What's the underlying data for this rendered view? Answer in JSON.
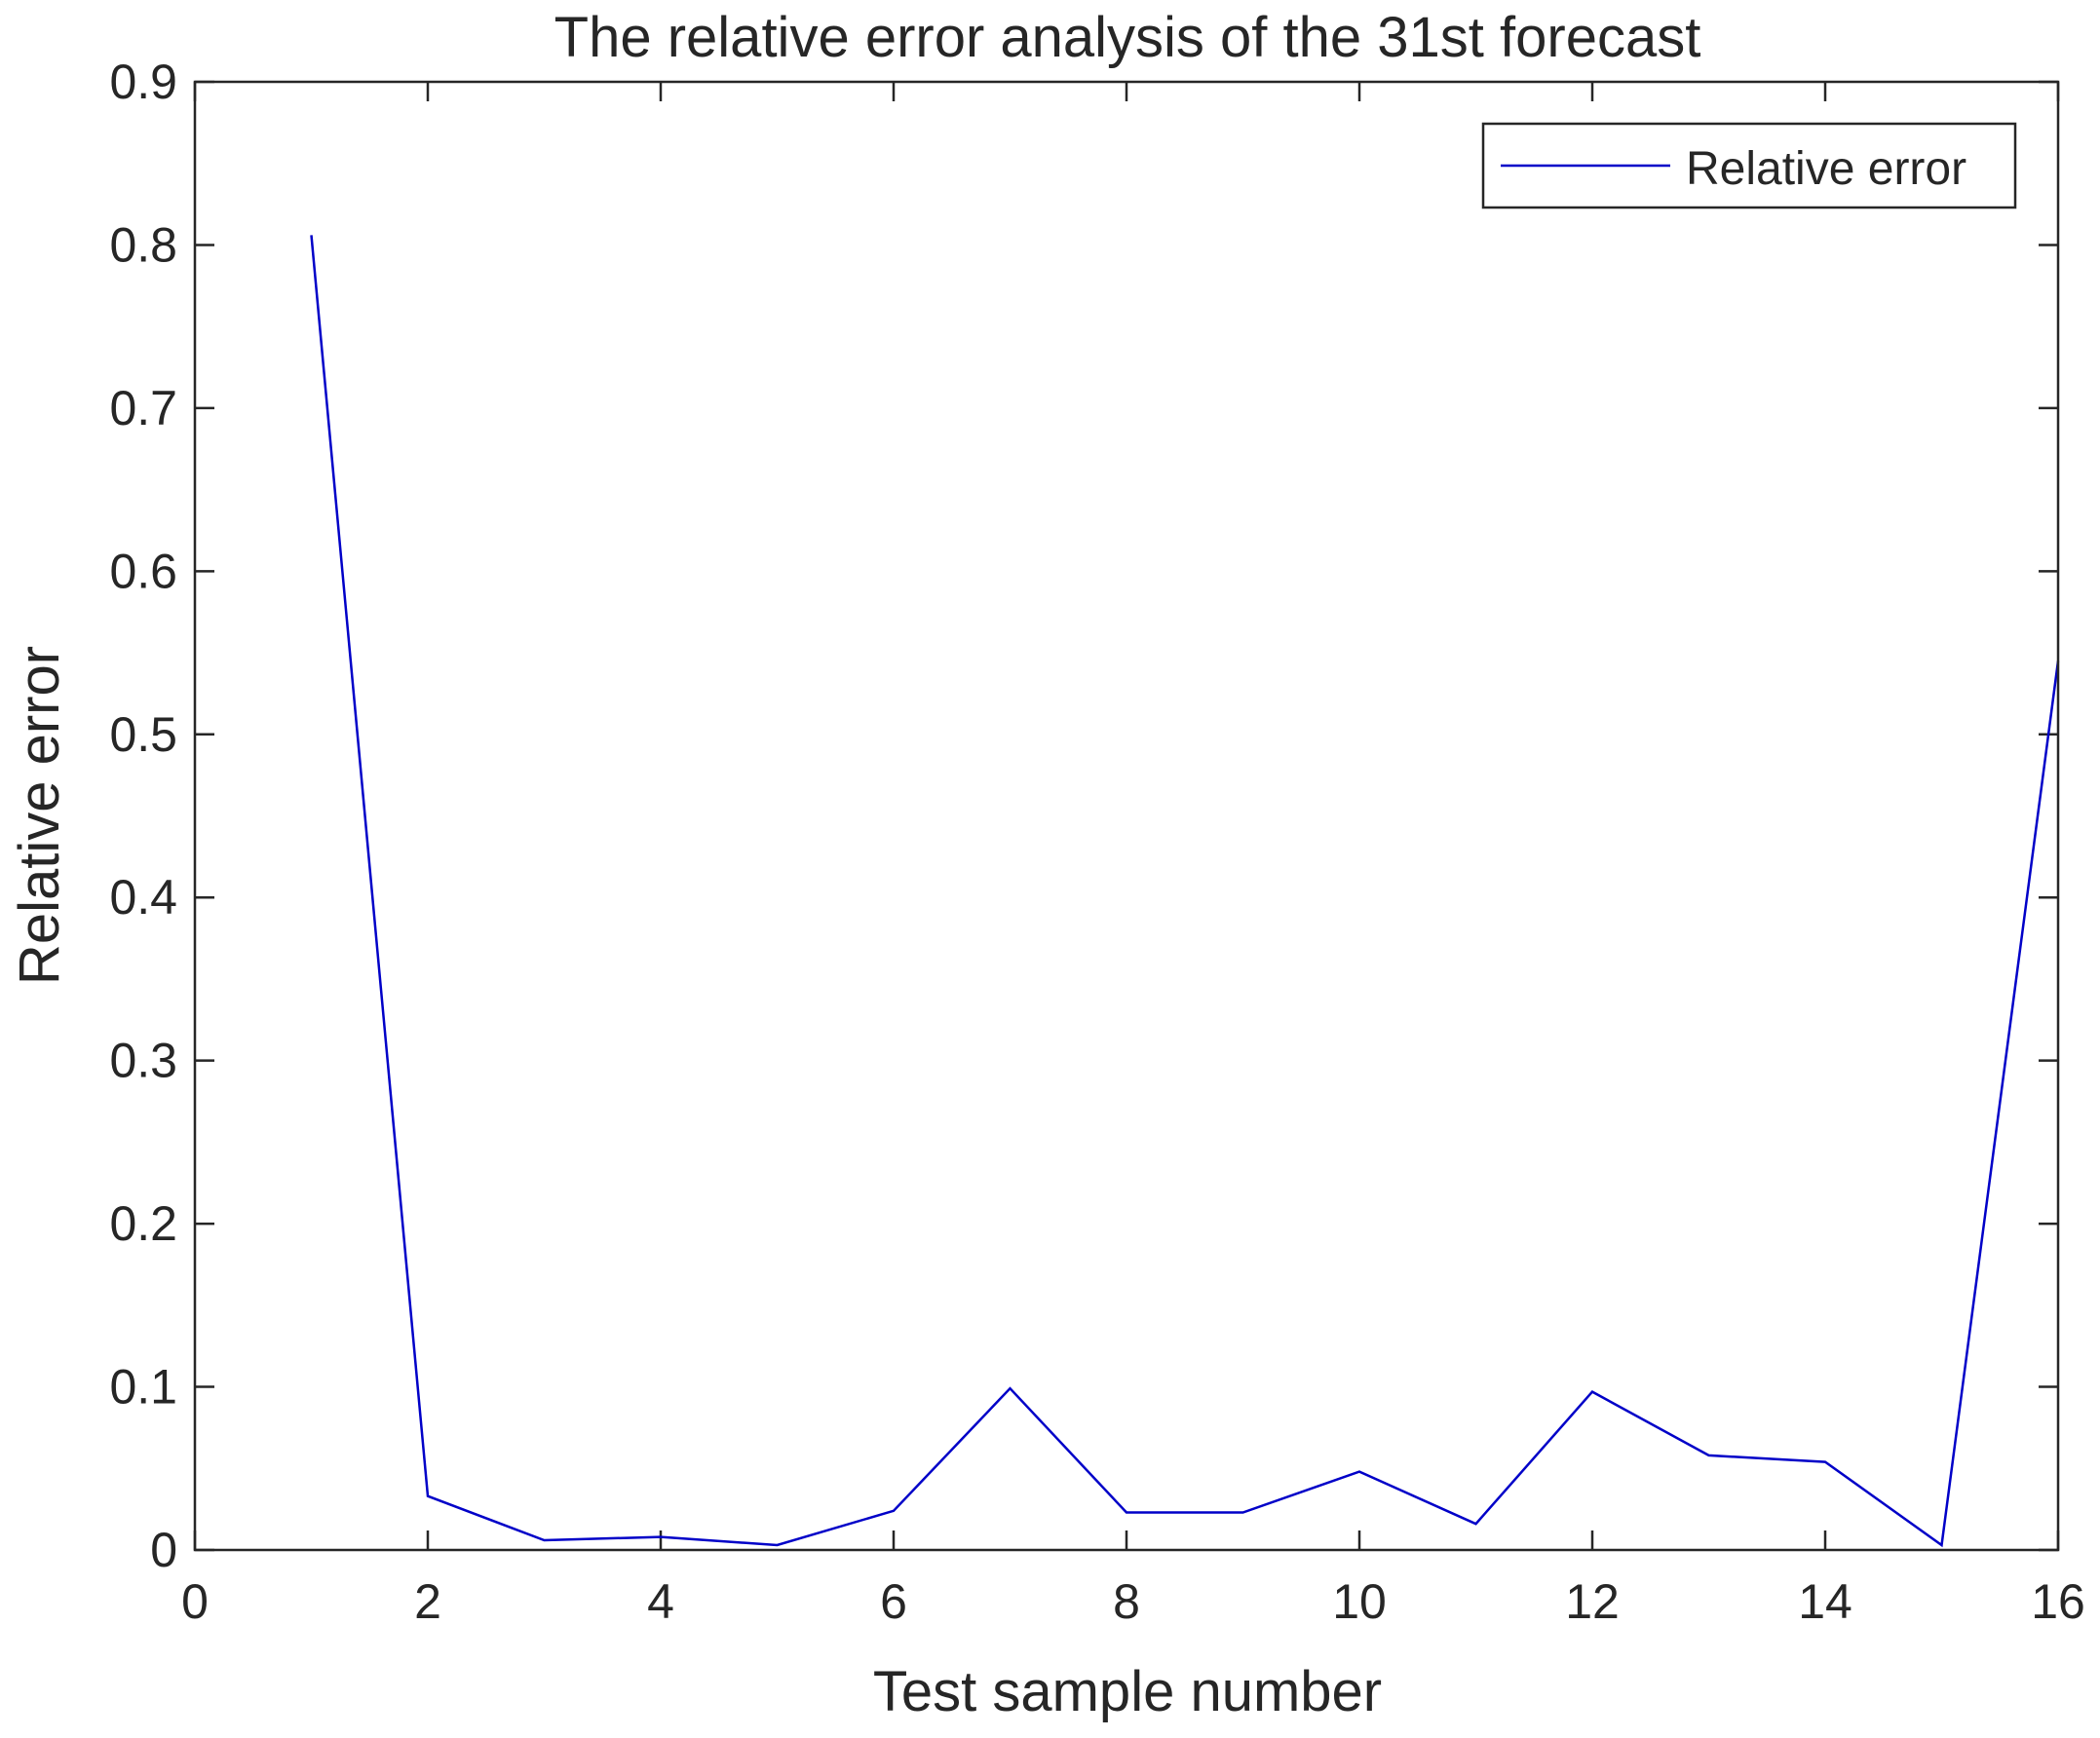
{
  "chart_data": {
    "type": "line",
    "title": "The relative error analysis of the 31st forecast",
    "xlabel": "Test sample number",
    "ylabel": "Relative error",
    "xlim": [
      0,
      16
    ],
    "ylim": [
      0,
      0.9
    ],
    "xticks": [
      0,
      2,
      4,
      6,
      8,
      10,
      12,
      14,
      16
    ],
    "yticks": [
      0,
      0.1,
      0.2,
      0.3,
      0.4,
      0.5,
      0.6,
      0.7,
      0.8,
      0.9
    ],
    "xtick_labels": [
      "0",
      "2",
      "4",
      "6",
      "8",
      "10",
      "12",
      "14",
      "16"
    ],
    "ytick_labels": [
      "0",
      "0.1",
      "0.2",
      "0.3",
      "0.4",
      "0.5",
      "0.6",
      "0.7",
      "0.8",
      "0.9"
    ],
    "grid": false,
    "legend_position": "top-right",
    "series": [
      {
        "name": "Relative error",
        "color": "#0000c8",
        "x": [
          1,
          2,
          3,
          4,
          5,
          6,
          7,
          8,
          9,
          10,
          11,
          12,
          13,
          14,
          15,
          16
        ],
        "y": [
          0.806,
          0.033,
          0.006,
          0.008,
          0.003,
          0.024,
          0.099,
          0.023,
          0.023,
          0.048,
          0.016,
          0.097,
          0.058,
          0.054,
          0.003,
          0.545
        ]
      }
    ]
  }
}
